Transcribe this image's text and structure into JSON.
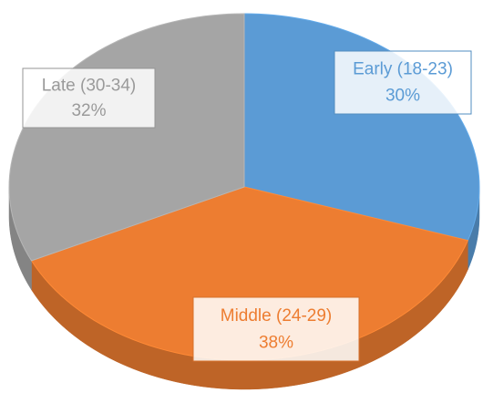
{
  "chart_data": {
    "type": "pie3d",
    "categories": [
      "Early (18-23)",
      "Middle (24-29)",
      "Late (30-34)"
    ],
    "values": [
      30,
      38,
      32
    ],
    "value_labels": [
      "30%",
      "38%",
      "32%"
    ],
    "colors": [
      "#5b9bd5",
      "#ed7d31",
      "#a5a5a5"
    ]
  }
}
